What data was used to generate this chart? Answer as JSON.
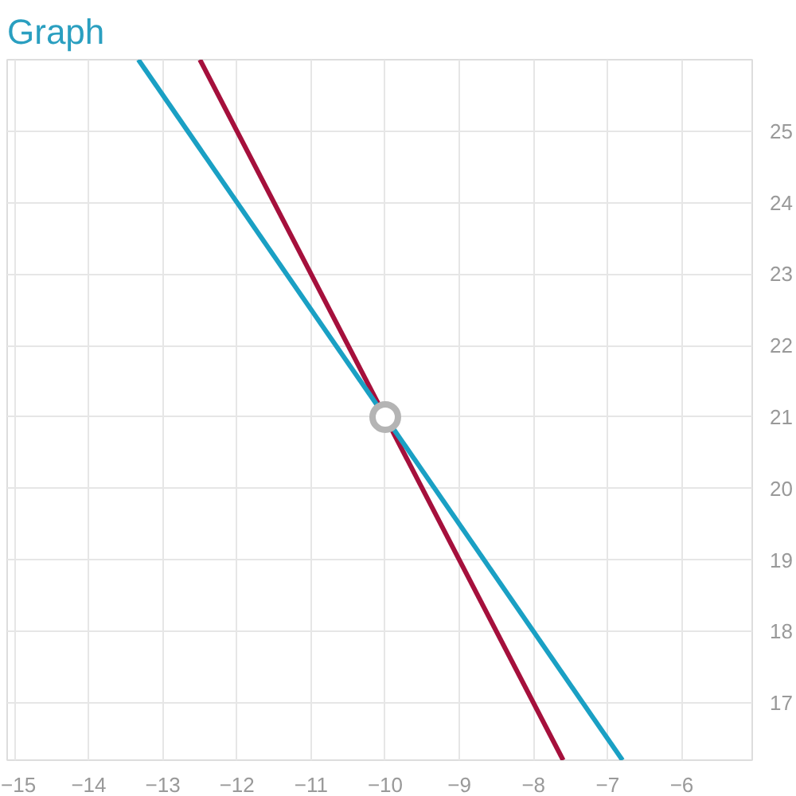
{
  "chart_data": {
    "type": "line",
    "title": "Graph",
    "series": [
      {
        "color": "#a5103c",
        "x": [
          -12.5,
          -7.6
        ],
        "values": [
          26,
          16.2
        ]
      },
      {
        "color": "#1aa0c4",
        "x": [
          -13.33,
          -6.8
        ],
        "values": [
          26,
          16.2
        ]
      },
      {
        "type": "scatter",
        "color": "#b4b4b4",
        "x": [
          -10
        ],
        "values": [
          21
        ]
      }
    ],
    "xlim": [
      -15.1,
      -5.05
    ],
    "ylim": [
      16.2,
      26
    ],
    "xticks": [
      -15,
      -14,
      -13,
      -12,
      -11,
      -10,
      -9,
      -8,
      -7,
      -6
    ],
    "yticks": [
      17,
      18,
      19,
      20,
      21,
      22,
      23,
      24,
      25
    ],
    "grid": true
  }
}
